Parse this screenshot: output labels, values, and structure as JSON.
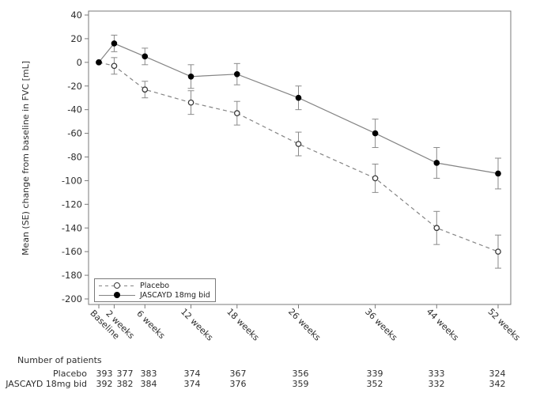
{
  "chart_data": {
    "type": "line",
    "title": "",
    "ylabel": "Mean (SE) change from baseline in FVC [mL]",
    "xlabel": "",
    "ylim": [
      -200,
      40
    ],
    "ytick_step": 20,
    "grid": false,
    "frame": true,
    "legend_position": "inside-bottom-left",
    "categories": [
      "Baseline",
      "2 weeks",
      "6 weeks",
      "12 weeks",
      "18 weeks",
      "26 weeks",
      "36 weeks",
      "44 weeks",
      "52 weeks"
    ],
    "x_weeks": [
      0,
      2,
      6,
      12,
      18,
      26,
      36,
      44,
      52
    ],
    "series": [
      {
        "name": "Placebo",
        "line_style": "dashed",
        "marker": "open-circle",
        "color": "#848484",
        "marker_color": "#3a3a3a",
        "values": [
          0,
          -3,
          -23,
          -34,
          -43,
          -69,
          -98,
          -140,
          -160
        ],
        "se": [
          0,
          7,
          7,
          10,
          10,
          10,
          12,
          14,
          14
        ]
      },
      {
        "name": "JASCAYD 18mg bid",
        "line_style": "solid",
        "marker": "filled-circle",
        "color": "#848484",
        "marker_color": "#000000",
        "values": [
          0,
          16,
          5,
          -12,
          -10,
          -30,
          -60,
          -85,
          -94
        ],
        "se": [
          0,
          7,
          7,
          10,
          9,
          10,
          12,
          13,
          13
        ]
      }
    ]
  },
  "patients_table": {
    "title": "Number of patients",
    "rows": [
      {
        "label": "Placebo",
        "counts": [
          "393",
          "377",
          "383",
          "374",
          "367",
          "356",
          "339",
          "333",
          "324"
        ]
      },
      {
        "label": "JASCAYD 18mg bid",
        "counts": [
          "392",
          "382",
          "384",
          "374",
          "376",
          "359",
          "352",
          "332",
          "342"
        ]
      }
    ]
  },
  "colors": {
    "axis": "#7a7a7a",
    "text": "#2e2e2e",
    "line": "#848484",
    "error_bar": "#8a8a8a",
    "marker_filled": "#000000",
    "marker_open_fill": "#ffffff",
    "marker_open_stroke": "#3a3a3a",
    "background": "#ffffff"
  }
}
